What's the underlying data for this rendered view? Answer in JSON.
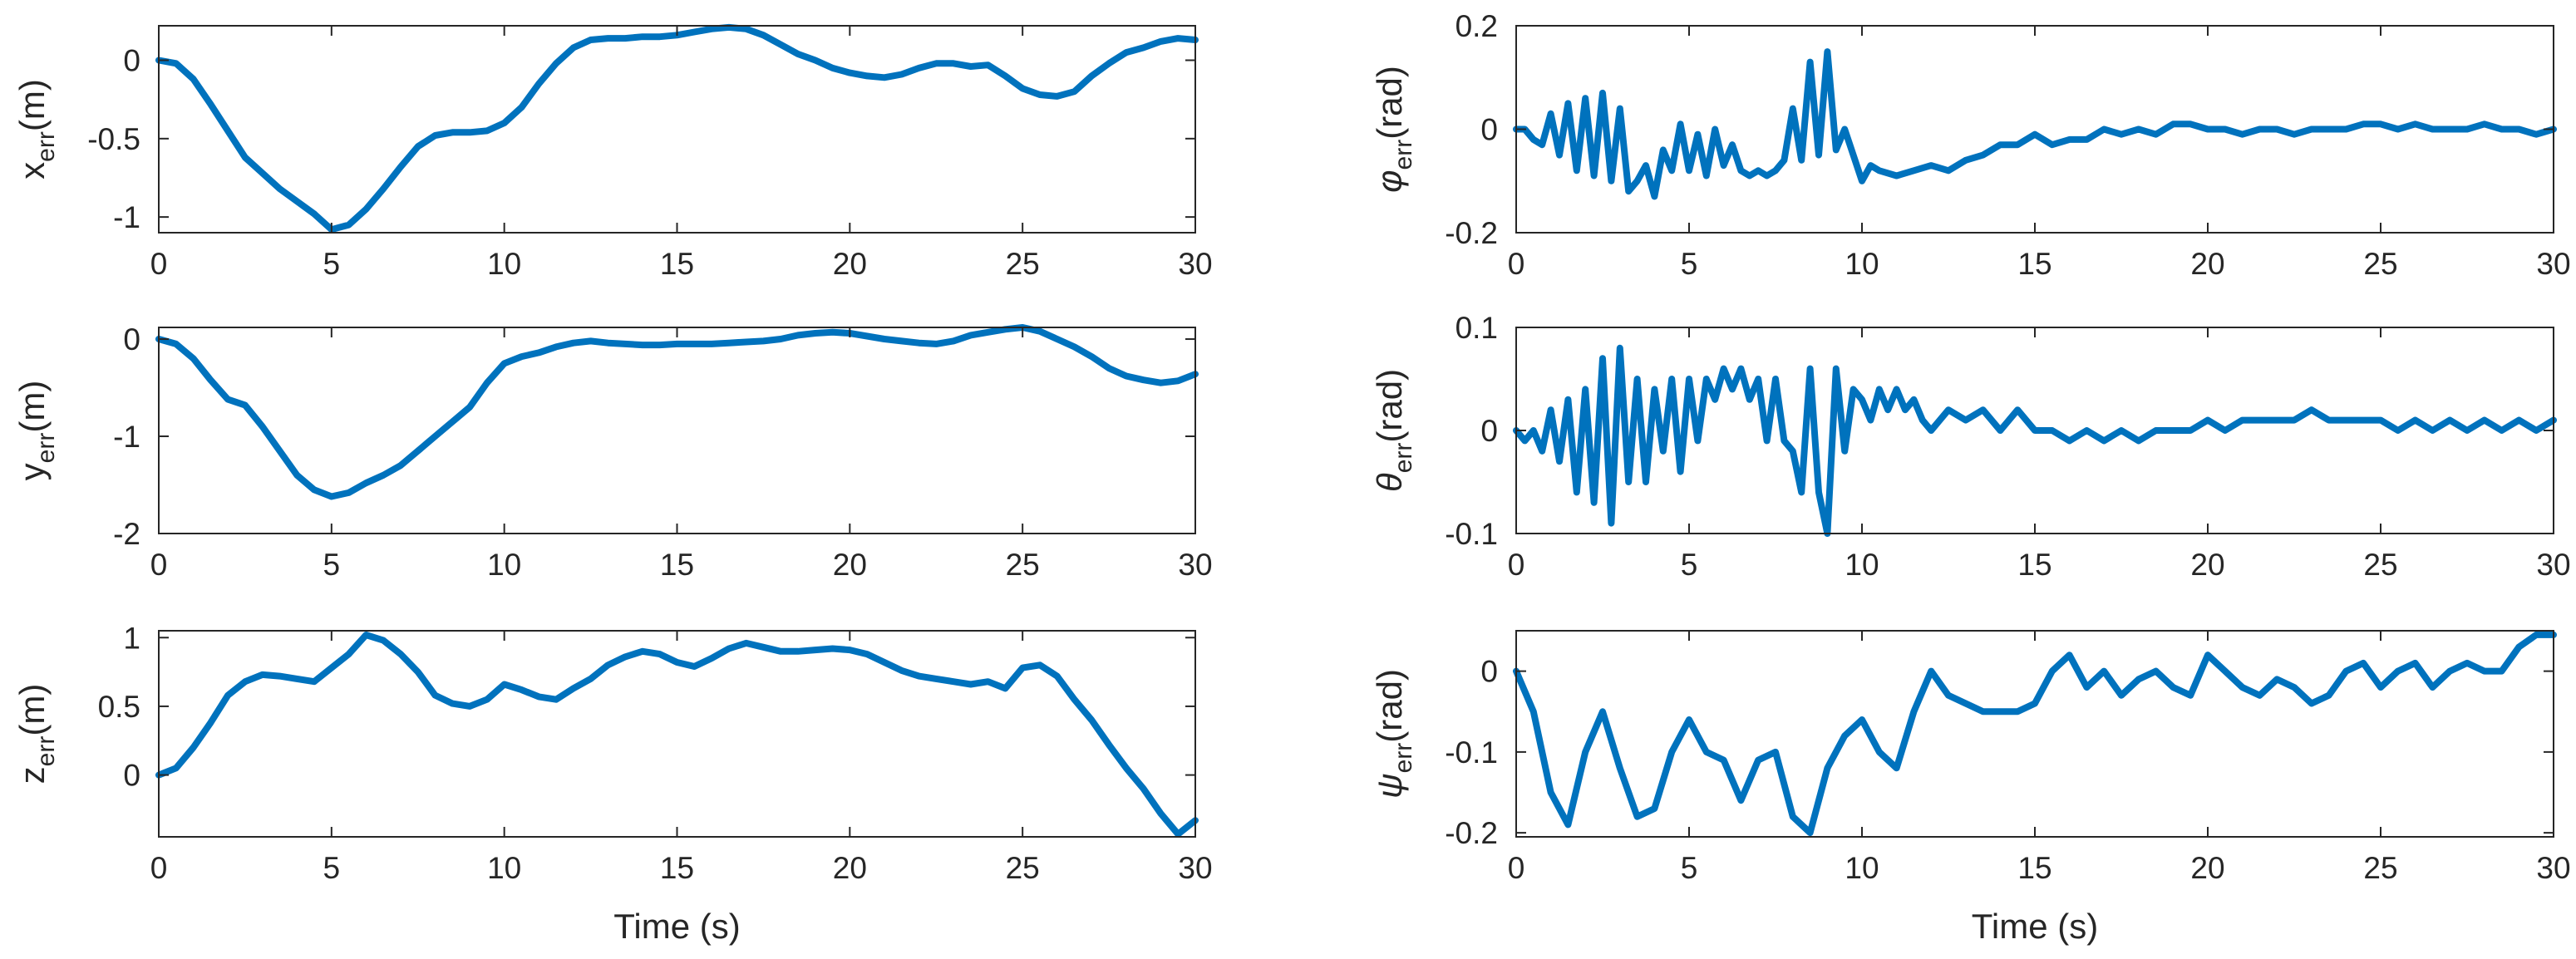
{
  "chart_data": [
    {
      "type": "line",
      "ylabel": {
        "base": "x",
        "sub": "err",
        "unit": "(m)"
      },
      "xlabel": "",
      "xlim": [
        0,
        30
      ],
      "ylim": [
        -1.1,
        0.22
      ],
      "xticks": [
        0,
        5,
        10,
        15,
        20,
        25,
        30
      ],
      "yticks": [
        -1,
        -0.5,
        0
      ],
      "ytick_labels": [
        "-1",
        "-0.5",
        "0"
      ],
      "series": [
        {
          "x": [
            0,
            0.5,
            1,
            1.5,
            2,
            2.5,
            3,
            3.5,
            4,
            4.5,
            5,
            5.5,
            6,
            6.5,
            7,
            7.5,
            8,
            8.5,
            9,
            9.5,
            10,
            10.5,
            11,
            11.5,
            12,
            12.5,
            13,
            13.5,
            14,
            14.5,
            15,
            15.5,
            16,
            16.5,
            17,
            17.5,
            18,
            18.5,
            19,
            19.5,
            20,
            20.5,
            21,
            21.5,
            22,
            22.5,
            23,
            23.5,
            24,
            24.5,
            25,
            25.5,
            26,
            26.5,
            27,
            27.5,
            28,
            28.5,
            29,
            29.5,
            30
          ],
          "y": [
            0,
            -0.02,
            -0.12,
            -0.28,
            -0.45,
            -0.62,
            -0.72,
            -0.82,
            -0.9,
            -0.98,
            -1.08,
            -1.05,
            -0.95,
            -0.82,
            -0.68,
            -0.55,
            -0.48,
            -0.46,
            -0.46,
            -0.45,
            -0.4,
            -0.3,
            -0.15,
            -0.02,
            0.08,
            0.13,
            0.14,
            0.14,
            0.15,
            0.15,
            0.16,
            0.18,
            0.2,
            0.21,
            0.2,
            0.16,
            0.1,
            0.04,
            0,
            -0.05,
            -0.08,
            -0.1,
            -0.11,
            -0.09,
            -0.05,
            -0.02,
            -0.02,
            -0.04,
            -0.03,
            -0.1,
            -0.18,
            -0.22,
            -0.23,
            -0.2,
            -0.1,
            -0.02,
            0.05,
            0.08,
            0.12,
            0.14,
            0.13
          ]
        }
      ]
    },
    {
      "type": "line",
      "ylabel": {
        "base": "y",
        "sub": "err",
        "unit": "(m)"
      },
      "xlabel": "",
      "xlim": [
        0,
        30
      ],
      "ylim": [
        -2,
        0.12
      ],
      "xticks": [
        0,
        5,
        10,
        15,
        20,
        25,
        30
      ],
      "yticks": [
        -2,
        -1,
        0
      ],
      "ytick_labels": [
        "-2",
        "-1",
        "0"
      ],
      "series": [
        {
          "x": [
            0,
            0.5,
            1,
            1.5,
            2,
            2.5,
            3,
            3.5,
            4,
            4.5,
            5,
            5.5,
            6,
            6.5,
            7,
            7.5,
            8,
            8.5,
            9,
            9.5,
            10,
            10.5,
            11,
            11.5,
            12,
            12.5,
            13,
            13.5,
            14,
            14.5,
            15,
            15.5,
            16,
            16.5,
            17,
            17.5,
            18,
            18.5,
            19,
            19.5,
            20,
            20.5,
            21,
            21.5,
            22,
            22.5,
            23,
            23.5,
            24,
            24.5,
            25,
            25.5,
            26,
            26.5,
            27,
            27.5,
            28,
            28.5,
            29,
            29.5,
            30
          ],
          "y": [
            0,
            -0.05,
            -0.2,
            -0.42,
            -0.62,
            -0.68,
            -0.9,
            -1.15,
            -1.4,
            -1.55,
            -1.62,
            -1.58,
            -1.48,
            -1.4,
            -1.3,
            -1.15,
            -1.0,
            -0.85,
            -0.7,
            -0.45,
            -0.25,
            -0.18,
            -0.14,
            -0.08,
            -0.04,
            -0.02,
            -0.04,
            -0.05,
            -0.06,
            -0.06,
            -0.05,
            -0.05,
            -0.05,
            -0.04,
            -0.03,
            -0.02,
            0,
            0.04,
            0.06,
            0.07,
            0.06,
            0.03,
            0,
            -0.02,
            -0.04,
            -0.05,
            -0.02,
            0.04,
            0.07,
            0.1,
            0.12,
            0.08,
            0,
            -0.08,
            -0.18,
            -0.3,
            -0.38,
            -0.42,
            -0.45,
            -0.43,
            -0.36
          ]
        }
      ]
    },
    {
      "type": "line",
      "ylabel": {
        "base": "z",
        "sub": "err",
        "unit": "(m)"
      },
      "xlabel": "Time (s)",
      "xlim": [
        0,
        30
      ],
      "ylim": [
        -0.45,
        1.05
      ],
      "xticks": [
        0,
        5,
        10,
        15,
        20,
        25,
        30
      ],
      "yticks": [
        0,
        0.5,
        1
      ],
      "ytick_labels": [
        "0",
        "0.5",
        "1"
      ],
      "series": [
        {
          "x": [
            0,
            0.5,
            1,
            1.5,
            2,
            2.5,
            3,
            3.5,
            4,
            4.5,
            5,
            5.5,
            6,
            6.5,
            7,
            7.5,
            8,
            8.5,
            9,
            9.5,
            10,
            10.5,
            11,
            11.5,
            12,
            12.5,
            13,
            13.5,
            14,
            14.5,
            15,
            15.5,
            16,
            16.5,
            17,
            17.5,
            18,
            18.5,
            19,
            19.5,
            20,
            20.5,
            21,
            21.5,
            22,
            22.5,
            23,
            23.5,
            24,
            24.5,
            25,
            25.5,
            26,
            26.5,
            27,
            27.5,
            28,
            28.5,
            29,
            29.5,
            30
          ],
          "y": [
            0,
            0.05,
            0.2,
            0.38,
            0.58,
            0.68,
            0.73,
            0.72,
            0.7,
            0.68,
            0.78,
            0.88,
            1.02,
            0.98,
            0.88,
            0.75,
            0.58,
            0.52,
            0.5,
            0.55,
            0.66,
            0.62,
            0.57,
            0.55,
            0.63,
            0.7,
            0.8,
            0.86,
            0.9,
            0.88,
            0.82,
            0.79,
            0.85,
            0.92,
            0.96,
            0.93,
            0.9,
            0.9,
            0.91,
            0.92,
            0.91,
            0.88,
            0.82,
            0.76,
            0.72,
            0.7,
            0.68,
            0.66,
            0.68,
            0.63,
            0.78,
            0.8,
            0.72,
            0.55,
            0.4,
            0.22,
            0.05,
            -0.1,
            -0.28,
            -0.43,
            -0.33
          ]
        }
      ]
    },
    {
      "type": "line",
      "ylabel": {
        "base": "φ",
        "sub": "err",
        "unit": "(rad)"
      },
      "xlabel": "",
      "xlim": [
        0,
        30
      ],
      "ylim": [
        -0.2,
        0.2
      ],
      "xticks": [
        0,
        5,
        10,
        15,
        20,
        25,
        30
      ],
      "yticks": [
        -0.2,
        0,
        0.2
      ],
      "ytick_labels": [
        "-0.2",
        "0",
        "0.2"
      ],
      "series": [
        {
          "x": [
            0,
            0.25,
            0.5,
            0.75,
            1,
            1.25,
            1.5,
            1.75,
            2,
            2.25,
            2.5,
            2.75,
            3,
            3.25,
            3.5,
            3.75,
            4,
            4.25,
            4.5,
            4.75,
            5,
            5.25,
            5.5,
            5.75,
            6,
            6.25,
            6.5,
            6.75,
            7,
            7.25,
            7.5,
            7.75,
            8,
            8.25,
            8.5,
            8.75,
            9,
            9.25,
            9.5,
            9.75,
            10,
            10.25,
            10.5,
            11,
            11.5,
            12,
            12.5,
            13,
            13.5,
            14,
            14.5,
            15,
            15.5,
            16,
            16.5,
            17,
            17.5,
            18,
            18.5,
            19,
            19.5,
            20,
            20.5,
            21,
            21.5,
            22,
            22.5,
            23,
            23.5,
            24,
            24.5,
            25,
            25.5,
            26,
            26.5,
            27,
            27.5,
            28,
            28.5,
            29,
            29.5,
            30
          ],
          "y": [
            0,
            0,
            -0.02,
            -0.03,
            0.03,
            -0.05,
            0.05,
            -0.08,
            0.06,
            -0.09,
            0.07,
            -0.1,
            0.04,
            -0.12,
            -0.1,
            -0.07,
            -0.13,
            -0.04,
            -0.08,
            0.01,
            -0.08,
            -0.01,
            -0.09,
            0.0,
            -0.07,
            -0.03,
            -0.08,
            -0.09,
            -0.08,
            -0.09,
            -0.08,
            -0.06,
            0.04,
            -0.06,
            0.13,
            -0.05,
            0.15,
            -0.04,
            0.0,
            -0.05,
            -0.1,
            -0.07,
            -0.08,
            -0.09,
            -0.08,
            -0.07,
            -0.08,
            -0.06,
            -0.05,
            -0.03,
            -0.03,
            -0.01,
            -0.03,
            -0.02,
            -0.02,
            0.0,
            -0.01,
            0.0,
            -0.01,
            0.01,
            0.01,
            0.0,
            0.0,
            -0.01,
            0.0,
            0.0,
            -0.01,
            0.0,
            0.0,
            0.0,
            0.01,
            0.01,
            0.0,
            0.01,
            0.0,
            0.0,
            0.0,
            0.01,
            0.0,
            0.0,
            -0.01,
            0.0
          ]
        }
      ]
    },
    {
      "type": "line",
      "ylabel": {
        "base": "θ",
        "sub": "err",
        "unit": "(rad)"
      },
      "xlabel": "",
      "xlim": [
        0,
        30
      ],
      "ylim": [
        -0.1,
        0.1
      ],
      "xticks": [
        0,
        5,
        10,
        15,
        20,
        25,
        30
      ],
      "yticks": [
        -0.1,
        0,
        0.1
      ],
      "ytick_labels": [
        "-0.1",
        "0",
        "0.1"
      ],
      "series": [
        {
          "x": [
            0,
            0.25,
            0.5,
            0.75,
            1,
            1.25,
            1.5,
            1.75,
            2,
            2.25,
            2.5,
            2.75,
            3,
            3.25,
            3.5,
            3.75,
            4,
            4.25,
            4.5,
            4.75,
            5,
            5.25,
            5.5,
            5.75,
            6,
            6.25,
            6.5,
            6.75,
            7,
            7.25,
            7.5,
            7.75,
            8,
            8.25,
            8.5,
            8.75,
            9,
            9.25,
            9.5,
            9.75,
            10,
            10.25,
            10.5,
            10.75,
            11,
            11.25,
            11.5,
            11.75,
            12,
            12.5,
            13,
            13.5,
            14,
            14.5,
            15,
            15.5,
            16,
            16.5,
            17,
            17.5,
            18,
            18.5,
            19,
            19.5,
            20,
            20.5,
            21,
            21.5,
            22,
            22.5,
            23,
            23.5,
            24,
            24.5,
            25,
            25.5,
            26,
            26.5,
            27,
            27.5,
            28,
            28.5,
            29,
            29.5,
            30
          ],
          "y": [
            0,
            -0.01,
            0,
            -0.02,
            0.02,
            -0.03,
            0.03,
            -0.06,
            0.04,
            -0.07,
            0.07,
            -0.09,
            0.08,
            -0.05,
            0.05,
            -0.05,
            0.04,
            -0.02,
            0.05,
            -0.04,
            0.05,
            -0.01,
            0.05,
            0.03,
            0.06,
            0.04,
            0.06,
            0.03,
            0.05,
            -0.01,
            0.05,
            -0.01,
            -0.02,
            -0.06,
            0.06,
            -0.06,
            -0.1,
            0.06,
            -0.02,
            0.04,
            0.03,
            0.01,
            0.04,
            0.02,
            0.04,
            0.02,
            0.03,
            0.01,
            0.0,
            0.02,
            0.01,
            0.02,
            0.0,
            0.02,
            0.0,
            0.0,
            -0.01,
            0.0,
            -0.01,
            0.0,
            -0.01,
            0.0,
            0.0,
            0.0,
            0.01,
            0.0,
            0.01,
            0.01,
            0.01,
            0.01,
            0.02,
            0.01,
            0.01,
            0.01,
            0.01,
            0.0,
            0.01,
            0.0,
            0.01,
            0.0,
            0.01,
            0.0,
            0.01,
            0.0,
            0.01
          ]
        }
      ]
    },
    {
      "type": "line",
      "ylabel": {
        "base": "ψ",
        "sub": "err",
        "unit": "(rad)"
      },
      "xlabel": "Time (s)",
      "xlim": [
        0,
        30
      ],
      "ylim": [
        -0.205,
        0.05
      ],
      "xticks": [
        0,
        5,
        10,
        15,
        20,
        25,
        30
      ],
      "yticks": [
        -0.2,
        -0.1,
        0
      ],
      "ytick_labels": [
        "-0.2",
        "-0.1",
        "0"
      ],
      "series": [
        {
          "x": [
            0,
            0.5,
            1,
            1.5,
            2,
            2.5,
            3,
            3.5,
            4,
            4.5,
            5,
            5.5,
            6,
            6.5,
            7,
            7.5,
            8,
            8.5,
            9,
            9.5,
            10,
            10.5,
            11,
            11.5,
            12,
            12.5,
            13,
            13.5,
            14,
            14.5,
            15,
            15.5,
            16,
            16.5,
            17,
            17.5,
            18,
            18.5,
            19,
            19.5,
            20,
            20.5,
            21,
            21.5,
            22,
            22.5,
            23,
            23.5,
            24,
            24.5,
            25,
            25.5,
            26,
            26.5,
            27,
            27.5,
            28,
            28.5,
            29,
            29.5,
            30
          ],
          "y": [
            0,
            -0.05,
            -0.15,
            -0.19,
            -0.1,
            -0.05,
            -0.12,
            -0.18,
            -0.17,
            -0.1,
            -0.06,
            -0.1,
            -0.11,
            -0.16,
            -0.11,
            -0.1,
            -0.18,
            -0.2,
            -0.12,
            -0.08,
            -0.06,
            -0.1,
            -0.12,
            -0.05,
            0.0,
            -0.03,
            -0.04,
            -0.05,
            -0.05,
            -0.05,
            -0.04,
            0.0,
            0.02,
            -0.02,
            0.0,
            -0.03,
            -0.01,
            0.0,
            -0.02,
            -0.03,
            0.02,
            0.0,
            -0.02,
            -0.03,
            -0.01,
            -0.02,
            -0.04,
            -0.03,
            0.0,
            0.01,
            -0.02,
            0.0,
            0.01,
            -0.02,
            0.0,
            0.01,
            0.0,
            0.0,
            0.03,
            0.045,
            0.045
          ]
        }
      ]
    }
  ]
}
